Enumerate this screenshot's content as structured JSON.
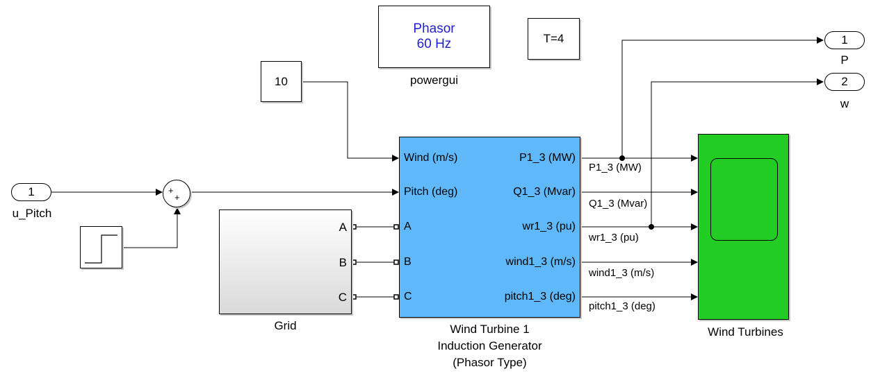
{
  "powergui": {
    "line1": "Phasor",
    "line2": "60 Hz",
    "caption": "powergui",
    "text_color": "#1f1fd0"
  },
  "time_block": {
    "label": "T=4"
  },
  "constant": {
    "value": "10"
  },
  "inport": {
    "number": "1",
    "name": "u_Pitch"
  },
  "sum_block": {
    "signs": [
      "+",
      "+"
    ]
  },
  "step_block": {
    "icon": "step-icon"
  },
  "grid": {
    "caption": "Grid",
    "ports": [
      "A",
      "B",
      "C"
    ]
  },
  "turbine": {
    "color": "#5fb8f9",
    "inputs": [
      "Wind (m/s)",
      "Pitch (deg)",
      "A",
      "B",
      "C"
    ],
    "outputs": [
      "P1_3 (MW)",
      "Q1_3 (Mvar)",
      "wr1_3 (pu)",
      "wind1_3 (m/s)",
      "pitch1_3 (deg)"
    ],
    "caption_lines": [
      "Wind Turbine 1",
      "Induction Generator",
      "(Phasor Type)"
    ]
  },
  "signals": [
    "P1_3 (MW)",
    "Q1_3 (Mvar)",
    "wr1_3 (pu)",
    "wind1_3 (m/s)",
    "pitch1_3 (deg)"
  ],
  "scope": {
    "caption": "Wind Turbines",
    "color": "#22cc22"
  },
  "outports": [
    {
      "number": "1",
      "name": "P"
    },
    {
      "number": "2",
      "name": "w"
    }
  ]
}
